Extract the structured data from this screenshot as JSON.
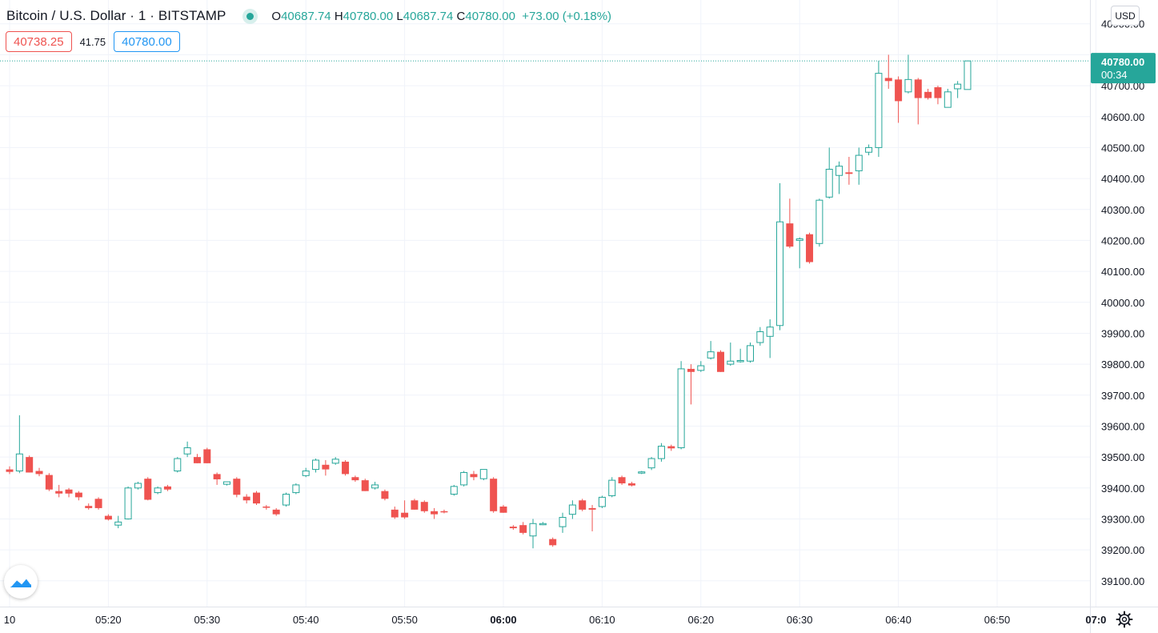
{
  "header": {
    "symbol": "Bitcoin / U.S. Dollar · 1 · BITSTAMP",
    "o_label": "O",
    "o_value": "40687.74",
    "h_label": "H",
    "h_value": "40780.00",
    "l_label": "L",
    "l_value": "40687.74",
    "c_label": "C",
    "c_value": "40780.00",
    "change": "+73.00 (+0.18%)"
  },
  "bid": "40738.25",
  "spread": "41.75",
  "ask": "40780.00",
  "currency": "USD",
  "last_price": {
    "price": "40780.00",
    "countdown": "00:34"
  },
  "colors": {
    "up": "#26a69a",
    "down": "#ef5350",
    "grid": "#f0f3fa",
    "axis_text": "#131722"
  },
  "icons": {
    "logo": "tradingview-logo-icon",
    "settings": "gear-icon"
  },
  "chart_data": {
    "type": "candlestick",
    "title": "Bitcoin / U.S. Dollar · 1 · BITSTAMP",
    "interval": "1 minute",
    "ylim": [
      39050,
      40930
    ],
    "y_ticks": [
      39100,
      39200,
      39300,
      39400,
      39500,
      39600,
      39700,
      39800,
      39900,
      40000,
      40100,
      40200,
      40300,
      40400,
      40500,
      40600,
      40700,
      40900
    ],
    "y_tick_labels": [
      "39100.00",
      "39200.00",
      "39300.00",
      "39400.00",
      "39500.00",
      "39600.00",
      "39700.00",
      "39800.00",
      "39900.00",
      "40000.00",
      "40100.00",
      "40200.00",
      "40300.00",
      "40400.00",
      "40500.00",
      "40600.00",
      "40700.00",
      "40900.00"
    ],
    "x_ticks": [
      {
        "label": "10",
        "minute": 10
      },
      {
        "label": "05:20",
        "minute": 20
      },
      {
        "label": "05:30",
        "minute": 30
      },
      {
        "label": "05:40",
        "minute": 40
      },
      {
        "label": "05:50",
        "minute": 50
      },
      {
        "label": "06:00",
        "minute": 60,
        "bold": true
      },
      {
        "label": "06:10",
        "minute": 70
      },
      {
        "label": "06:20",
        "minute": 80
      },
      {
        "label": "06:30",
        "minute": 90
      },
      {
        "label": "06:40",
        "minute": 100
      },
      {
        "label": "06:50",
        "minute": 110
      },
      {
        "label": "07:0",
        "minute": 120,
        "bold": true
      }
    ],
    "minute_start": 10,
    "candles": [
      {
        "o": 39460,
        "h": 39470,
        "l": 39445,
        "c": 39452
      },
      {
        "o": 39455,
        "h": 39635,
        "l": 39448,
        "c": 39510
      },
      {
        "o": 39500,
        "h": 39505,
        "l": 39450,
        "c": 39450
      },
      {
        "o": 39455,
        "h": 39465,
        "l": 39438,
        "c": 39445
      },
      {
        "o": 39442,
        "h": 39448,
        "l": 39390,
        "c": 39395
      },
      {
        "o": 39390,
        "h": 39410,
        "l": 39370,
        "c": 39382
      },
      {
        "o": 39395,
        "h": 39400,
        "l": 39370,
        "c": 39382
      },
      {
        "o": 39385,
        "h": 39390,
        "l": 39360,
        "c": 39370
      },
      {
        "o": 39342,
        "h": 39350,
        "l": 39330,
        "c": 39335
      },
      {
        "o": 39365,
        "h": 39370,
        "l": 39330,
        "c": 39335
      },
      {
        "o": 39310,
        "h": 39315,
        "l": 39295,
        "c": 39298
      },
      {
        "o": 39280,
        "h": 39310,
        "l": 39270,
        "c": 39290
      },
      {
        "o": 39300,
        "h": 39405,
        "l": 39298,
        "c": 39400
      },
      {
        "o": 39400,
        "h": 39420,
        "l": 39395,
        "c": 39415
      },
      {
        "o": 39430,
        "h": 39435,
        "l": 39360,
        "c": 39362
      },
      {
        "o": 39385,
        "h": 39405,
        "l": 39380,
        "c": 39400
      },
      {
        "o": 39405,
        "h": 39410,
        "l": 39390,
        "c": 39395
      },
      {
        "o": 39455,
        "h": 39500,
        "l": 39450,
        "c": 39495
      },
      {
        "o": 39510,
        "h": 39550,
        "l": 39500,
        "c": 39530
      },
      {
        "o": 39500,
        "h": 39510,
        "l": 39480,
        "c": 39480
      },
      {
        "o": 39525,
        "h": 39530,
        "l": 39480,
        "c": 39480
      },
      {
        "o": 39445,
        "h": 39450,
        "l": 39410,
        "c": 39428
      },
      {
        "o": 39412,
        "h": 39418,
        "l": 39408,
        "c": 39420
      },
      {
        "o": 39430,
        "h": 39435,
        "l": 39370,
        "c": 39378
      },
      {
        "o": 39372,
        "h": 39380,
        "l": 39350,
        "c": 39360
      },
      {
        "o": 39385,
        "h": 39390,
        "l": 39345,
        "c": 39350
      },
      {
        "o": 39340,
        "h": 39345,
        "l": 39330,
        "c": 39338
      },
      {
        "o": 39330,
        "h": 39335,
        "l": 39310,
        "c": 39315
      },
      {
        "o": 39345,
        "h": 39385,
        "l": 39340,
        "c": 39380
      },
      {
        "o": 39385,
        "h": 39415,
        "l": 39380,
        "c": 39410
      },
      {
        "o": 39440,
        "h": 39465,
        "l": 39435,
        "c": 39455
      },
      {
        "o": 39460,
        "h": 39495,
        "l": 39450,
        "c": 39490
      },
      {
        "o": 39475,
        "h": 39490,
        "l": 39440,
        "c": 39460
      },
      {
        "o": 39480,
        "h": 39500,
        "l": 39475,
        "c": 39493
      },
      {
        "o": 39485,
        "h": 39490,
        "l": 39440,
        "c": 39445
      },
      {
        "o": 39435,
        "h": 39440,
        "l": 39420,
        "c": 39425
      },
      {
        "o": 39425,
        "h": 39430,
        "l": 39390,
        "c": 39390
      },
      {
        "o": 39400,
        "h": 39420,
        "l": 39395,
        "c": 39410
      },
      {
        "o": 39390,
        "h": 39395,
        "l": 39360,
        "c": 39365
      },
      {
        "o": 39330,
        "h": 39340,
        "l": 39300,
        "c": 39305
      },
      {
        "o": 39320,
        "h": 39360,
        "l": 39300,
        "c": 39305
      },
      {
        "o": 39360,
        "h": 39365,
        "l": 39330,
        "c": 39330
      },
      {
        "o": 39355,
        "h": 39360,
        "l": 39320,
        "c": 39325
      },
      {
        "o": 39325,
        "h": 39335,
        "l": 39300,
        "c": 39315
      },
      {
        "o": 39325,
        "h": 39330,
        "l": 39318,
        "c": 39322
      },
      {
        "o": 39380,
        "h": 39410,
        "l": 39375,
        "c": 39405
      },
      {
        "o": 39410,
        "h": 39455,
        "l": 39405,
        "c": 39450
      },
      {
        "o": 39445,
        "h": 39455,
        "l": 39425,
        "c": 39435
      },
      {
        "o": 39430,
        "h": 39460,
        "l": 39425,
        "c": 39460
      },
      {
        "o": 39430,
        "h": 39435,
        "l": 39320,
        "c": 39325
      },
      {
        "o": 39340,
        "h": 39345,
        "l": 39320,
        "c": 39320
      },
      {
        "o": 39275,
        "h": 39280,
        "l": 39265,
        "c": 39270
      },
      {
        "o": 39280,
        "h": 39290,
        "l": 39250,
        "c": 39255
      },
      {
        "o": 39245,
        "h": 39300,
        "l": 39205,
        "c": 39285
      },
      {
        "o": 39285,
        "h": 39290,
        "l": 39280,
        "c": 39285
      },
      {
        "o": 39235,
        "h": 39240,
        "l": 39210,
        "c": 39215
      },
      {
        "o": 39275,
        "h": 39320,
        "l": 39255,
        "c": 39305
      },
      {
        "o": 39315,
        "h": 39360,
        "l": 39300,
        "c": 39345
      },
      {
        "o": 39360,
        "h": 39365,
        "l": 39325,
        "c": 39330
      },
      {
        "o": 39335,
        "h": 39345,
        "l": 39260,
        "c": 39330
      },
      {
        "o": 39340,
        "h": 39375,
        "l": 39335,
        "c": 39370
      },
      {
        "o": 39375,
        "h": 39435,
        "l": 39370,
        "c": 39425
      },
      {
        "o": 39435,
        "h": 39440,
        "l": 39410,
        "c": 39415
      },
      {
        "o": 39415,
        "h": 39420,
        "l": 39405,
        "c": 39408
      },
      {
        "o": 39448,
        "h": 39455,
        "l": 39445,
        "c": 39452
      },
      {
        "o": 39465,
        "h": 39500,
        "l": 39458,
        "c": 39495
      },
      {
        "o": 39495,
        "h": 39545,
        "l": 39485,
        "c": 39535
      },
      {
        "o": 39535,
        "h": 39540,
        "l": 39520,
        "c": 39528
      },
      {
        "o": 39530,
        "h": 39810,
        "l": 39525,
        "c": 39785
      },
      {
        "o": 39785,
        "h": 39800,
        "l": 39670,
        "c": 39775
      },
      {
        "o": 39780,
        "h": 39810,
        "l": 39775,
        "c": 39795
      },
      {
        "o": 39820,
        "h": 39875,
        "l": 39815,
        "c": 39840
      },
      {
        "o": 39840,
        "h": 39845,
        "l": 39775,
        "c": 39775
      },
      {
        "o": 39800,
        "h": 39870,
        "l": 39795,
        "c": 39810
      },
      {
        "o": 39808,
        "h": 39850,
        "l": 39805,
        "c": 39812
      },
      {
        "o": 39810,
        "h": 39870,
        "l": 39805,
        "c": 39860
      },
      {
        "o": 39870,
        "h": 39920,
        "l": 39860,
        "c": 39905
      },
      {
        "o": 39890,
        "h": 39945,
        "l": 39820,
        "c": 39920
      },
      {
        "o": 39925,
        "h": 40385,
        "l": 39910,
        "c": 40260
      },
      {
        "o": 40255,
        "h": 40335,
        "l": 40175,
        "c": 40180
      },
      {
        "o": 40200,
        "h": 40210,
        "l": 40110,
        "c": 40205
      },
      {
        "o": 40220,
        "h": 40225,
        "l": 40125,
        "c": 40130
      },
      {
        "o": 40190,
        "h": 40335,
        "l": 40180,
        "c": 40330
      },
      {
        "o": 40340,
        "h": 40500,
        "l": 40335,
        "c": 40430
      },
      {
        "o": 40410,
        "h": 40455,
        "l": 40350,
        "c": 40440
      },
      {
        "o": 40420,
        "h": 40470,
        "l": 40380,
        "c": 40415
      },
      {
        "o": 40425,
        "h": 40500,
        "l": 40380,
        "c": 40475
      },
      {
        "o": 40485,
        "h": 40510,
        "l": 40475,
        "c": 40500
      },
      {
        "o": 40500,
        "h": 40780,
        "l": 40470,
        "c": 40740
      },
      {
        "o": 40725,
        "h": 40800,
        "l": 40690,
        "c": 40715
      },
      {
        "o": 40720,
        "h": 40730,
        "l": 40580,
        "c": 40650
      },
      {
        "o": 40680,
        "h": 40800,
        "l": 40675,
        "c": 40720
      },
      {
        "o": 40720,
        "h": 40725,
        "l": 40575,
        "c": 40660
      },
      {
        "o": 40680,
        "h": 40690,
        "l": 40655,
        "c": 40660
      },
      {
        "o": 40695,
        "h": 40700,
        "l": 40640,
        "c": 40660
      },
      {
        "o": 40630,
        "h": 40690,
        "l": 40630,
        "c": 40680
      },
      {
        "o": 40690,
        "h": 40715,
        "l": 40660,
        "c": 40705
      },
      {
        "o": 40687.74,
        "h": 40780,
        "l": 40687.74,
        "c": 40780
      }
    ]
  }
}
